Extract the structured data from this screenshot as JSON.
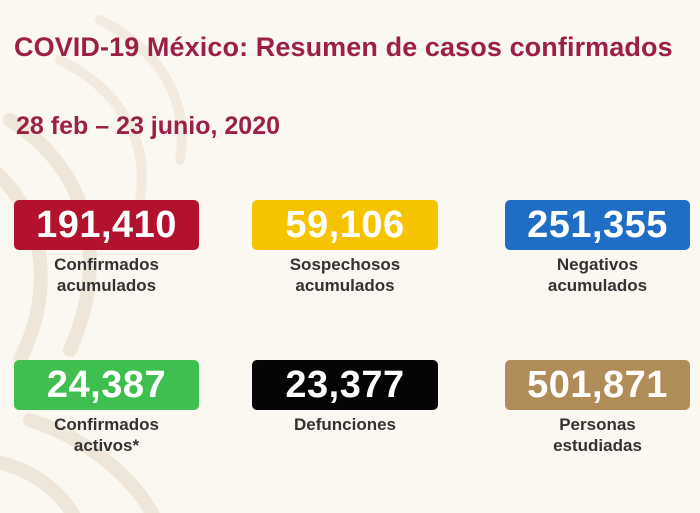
{
  "header": {
    "title": "COVID-19 México: Resumen de casos confirmados",
    "date_range": "28 feb – 23 junio, 2020"
  },
  "stats": [
    {
      "value": "191,410",
      "label_line1": "Confirmados",
      "label_line2": "acumulados",
      "color": "#b3122f"
    },
    {
      "value": "59,106",
      "label_line1": "Sospechosos",
      "label_line2": "acumulados",
      "color": "#f5c300"
    },
    {
      "value": "251,355",
      "label_line1": "Negativos",
      "label_line2": "acumulados",
      "color": "#1f6dc4"
    },
    {
      "value": "24,387",
      "label_line1": "Confirmados",
      "label_line2": "activos*",
      "color": "#3fbf4f"
    },
    {
      "value": "23,377",
      "label_line1": "Defunciones",
      "label_line2": "",
      "color": "#050505"
    },
    {
      "value": "501,871",
      "label_line1": "Personas",
      "label_line2": "estudiadas",
      "color": "#b08c58"
    }
  ]
}
